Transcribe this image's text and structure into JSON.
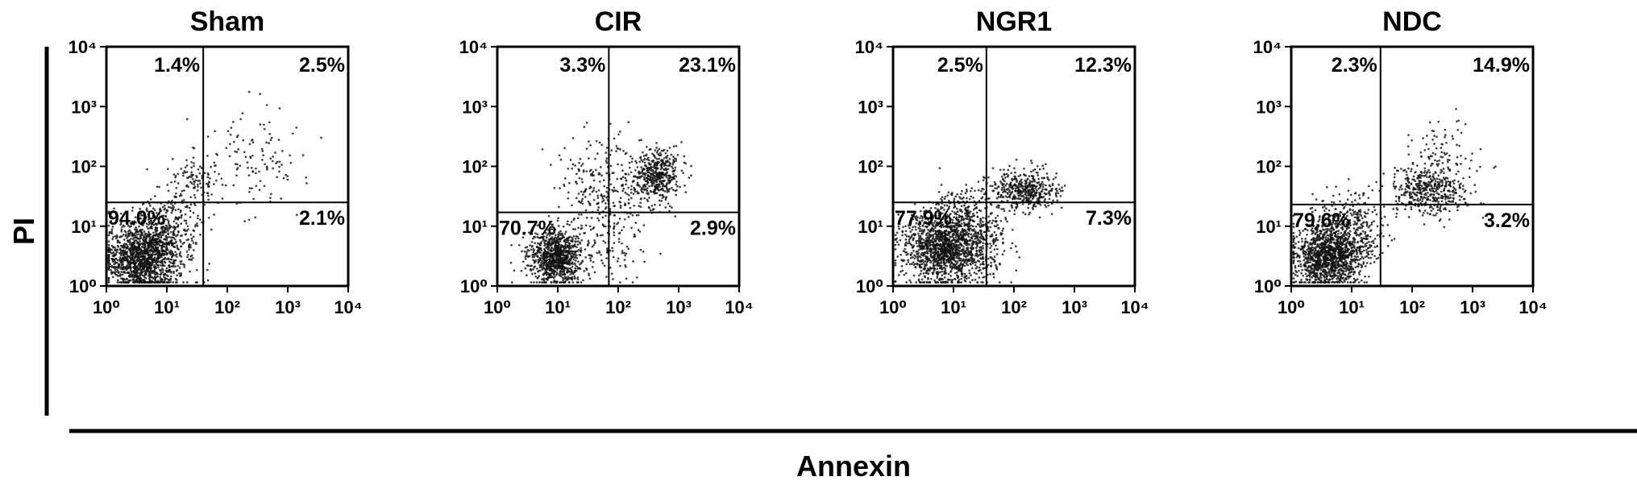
{
  "figure": {
    "y_axis_label": "PI",
    "x_axis_label": "Annexin"
  },
  "chart_data": [
    {
      "type": "scatter",
      "title": "Sham",
      "xlabel": "Annexin",
      "ylabel": "PI",
      "scale": "log",
      "xlim": [
        1,
        10000
      ],
      "ylim": [
        1,
        10000
      ],
      "x_ticks": [
        "10⁰",
        "10¹",
        "10²",
        "10³",
        "10⁴"
      ],
      "y_ticks": [
        "10⁰",
        "10¹",
        "10²",
        "10³",
        "10⁴"
      ],
      "gate": {
        "x": 40,
        "y": 25
      },
      "quadrants": {
        "upper_left": "1.4%",
        "upper_right": "2.5%",
        "lower_left": "94.0%",
        "lower_right": "2.1%"
      },
      "clusters": [
        {
          "x": 4,
          "y": 3,
          "spread_x": 0.3,
          "spread_y": 0.28,
          "count": 1300
        },
        {
          "x": 10,
          "y": 8,
          "spread_x": 0.3,
          "spread_y": 0.32,
          "count": 350
        },
        {
          "x": 28,
          "y": 60,
          "spread_x": 0.18,
          "spread_y": 0.22,
          "count": 90
        },
        {
          "x": 250,
          "y": 120,
          "spread_x": 0.45,
          "spread_y": 0.4,
          "count": 130
        }
      ]
    },
    {
      "type": "scatter",
      "title": "CIR",
      "xlabel": "Annexin",
      "ylabel": "PI",
      "scale": "log",
      "xlim": [
        1,
        10000
      ],
      "ylim": [
        1,
        10000
      ],
      "x_ticks": [
        "10⁰",
        "10¹",
        "10²",
        "10³",
        "10⁴"
      ],
      "y_ticks": [
        "10⁰",
        "10¹",
        "10²",
        "10³",
        "10⁴"
      ],
      "gate": {
        "x": 70,
        "y": 17
      },
      "quadrants": {
        "upper_left": "3.3%",
        "upper_right": "23.1%",
        "lower_left": "70.7%",
        "lower_right": "2.9%"
      },
      "clusters": [
        {
          "x": 9,
          "y": 3,
          "spread_x": 0.22,
          "spread_y": 0.22,
          "count": 900
        },
        {
          "x": 450,
          "y": 70,
          "spread_x": 0.2,
          "spread_y": 0.22,
          "count": 450
        },
        {
          "x": 60,
          "y": 40,
          "spread_x": 0.4,
          "spread_y": 0.45,
          "count": 300
        },
        {
          "x": 50,
          "y": 4,
          "spread_x": 0.35,
          "spread_y": 0.3,
          "count": 100
        }
      ]
    },
    {
      "type": "scatter",
      "title": "NGR1",
      "xlabel": "Annexin",
      "ylabel": "PI",
      "scale": "log",
      "xlim": [
        1,
        10000
      ],
      "ylim": [
        1,
        10000
      ],
      "x_ticks": [
        "10⁰",
        "10¹",
        "10²",
        "10³",
        "10⁴"
      ],
      "y_ticks": [
        "10⁰",
        "10¹",
        "10²",
        "10³",
        "10⁴"
      ],
      "gate": {
        "x": 35,
        "y": 25
      },
      "quadrants": {
        "upper_left": "2.5%",
        "upper_right": "12.3%",
        "lower_left": "77.9%",
        "lower_right": "7.3%"
      },
      "clusters": [
        {
          "x": 6,
          "y": 4,
          "spread_x": 0.32,
          "spread_y": 0.3,
          "count": 1100
        },
        {
          "x": 15,
          "y": 9,
          "spread_x": 0.3,
          "spread_y": 0.32,
          "count": 500
        },
        {
          "x": 150,
          "y": 40,
          "spread_x": 0.28,
          "spread_y": 0.18,
          "count": 450
        },
        {
          "x": 30,
          "y": 3,
          "spread_x": 0.22,
          "spread_y": 0.25,
          "count": 120
        }
      ]
    },
    {
      "type": "scatter",
      "title": "NDC",
      "xlabel": "Annexin",
      "ylabel": "PI",
      "scale": "log",
      "xlim": [
        1,
        10000
      ],
      "ylim": [
        1,
        10000
      ],
      "x_ticks": [
        "10⁰",
        "10¹",
        "10²",
        "10³",
        "10⁴"
      ],
      "y_ticks": [
        "10⁰",
        "10¹",
        "10²",
        "10³",
        "10⁴"
      ],
      "gate": {
        "x": 30,
        "y": 23
      },
      "quadrants": {
        "upper_left": "2.3%",
        "upper_right": "14.9%",
        "lower_left": "79.6%",
        "lower_right": "3.2%"
      },
      "clusters": [
        {
          "x": 4,
          "y": 3,
          "spread_x": 0.28,
          "spread_y": 0.26,
          "count": 1200
        },
        {
          "x": 10,
          "y": 9,
          "spread_x": 0.3,
          "spread_y": 0.32,
          "count": 350
        },
        {
          "x": 200,
          "y": 40,
          "spread_x": 0.3,
          "spread_y": 0.2,
          "count": 450
        },
        {
          "x": 300,
          "y": 180,
          "spread_x": 0.3,
          "spread_y": 0.3,
          "count": 80
        }
      ]
    }
  ]
}
